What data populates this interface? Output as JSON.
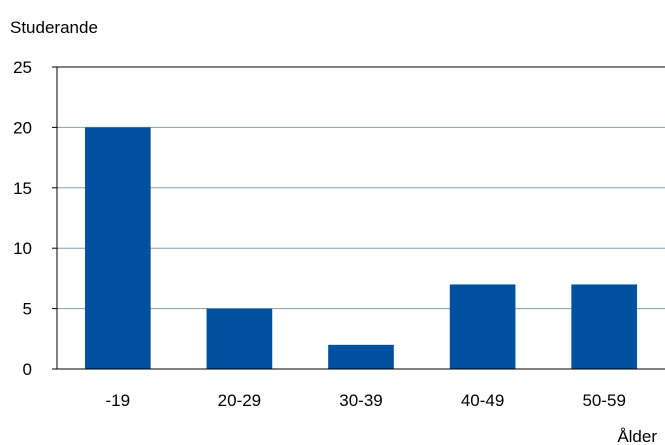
{
  "chart_data": {
    "type": "bar",
    "categories": [
      "-19",
      "20-29",
      "30-39",
      "40-49",
      "50-59"
    ],
    "values": [
      20,
      5,
      2,
      7,
      7
    ],
    "ylabel": "Studerande",
    "xlabel": "Ålder",
    "ylim": [
      0,
      25
    ],
    "yticks": [
      0,
      5,
      10,
      15,
      20,
      25
    ],
    "grid": true,
    "bar_color": "#0050A0",
    "grid_color": "#8A9BB0"
  }
}
